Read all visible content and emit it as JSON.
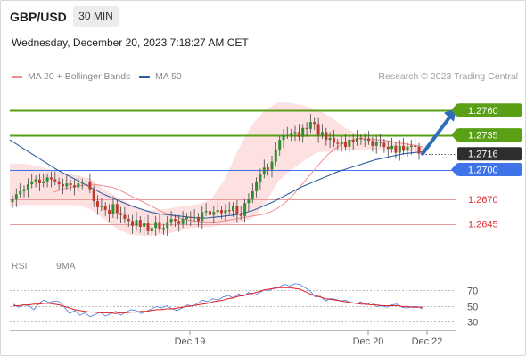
{
  "header": {
    "pair": "GBP/USD",
    "timeframe": "30 MIN",
    "timestamp": "Wednesday, December 20, 2023 7:18:27 AM CET"
  },
  "legend": {
    "ma20_label": "MA 20 + Bollinger Bands",
    "ma50_label": "MA 50",
    "credit": "Research © 2023 Trading Central"
  },
  "rsi_legend": {
    "rsi_label": "RSI",
    "ma_label": "9MA"
  },
  "colors": {
    "green_level": "#5aa016",
    "blue_level": "#3f73e8",
    "red_level": "#e89a9a",
    "ma20": "#f08c8c",
    "ma50": "#2f5fa0",
    "bollinger_fill": "#fde1e1",
    "candle_up": "#2f8f2f",
    "candle_down": "#c0392b",
    "arrow": "#2f6db8",
    "current_box": "#2e2e2e",
    "rsi": "#5b84e0",
    "rsi_ma": "#e02020"
  },
  "chart_data": [
    {
      "type": "line",
      "title": "GBP/USD 30 MIN",
      "ylim": [
        1.2615,
        1.2785
      ],
      "x_ticks": [
        "Dec 19",
        "Dec 20",
        "Dec 22"
      ],
      "levels": [
        {
          "value": 1.276,
          "label": "1.2760",
          "kind": "resistance"
        },
        {
          "value": 1.2735,
          "label": "1.2735",
          "kind": "resistance"
        },
        {
          "value": 1.2716,
          "label": "1.2716",
          "kind": "current"
        },
        {
          "value": 1.27,
          "label": "1.2700",
          "kind": "pivot"
        },
        {
          "value": 1.267,
          "label": "1.2670",
          "kind": "support"
        },
        {
          "value": 1.2645,
          "label": "1.2645",
          "kind": "support"
        }
      ],
      "close": [
        1.267,
        1.2675,
        1.2678,
        1.268,
        1.2685,
        1.2688,
        1.269,
        1.2686,
        1.2688,
        1.2692,
        1.269,
        1.2688,
        1.2685,
        1.2683,
        1.2686,
        1.2684,
        1.2682,
        1.2686,
        1.2687,
        1.2688,
        1.268,
        1.2668,
        1.2662,
        1.2663,
        1.2659,
        1.2655,
        1.2665,
        1.2656,
        1.2654,
        1.265,
        1.2648,
        1.2643,
        1.2649,
        1.2642,
        1.2646,
        1.2638,
        1.2641,
        1.2647,
        1.264,
        1.2641,
        1.2647,
        1.265,
        1.2648,
        1.2645,
        1.265,
        1.2652,
        1.2651,
        1.2652,
        1.2648,
        1.2657,
        1.2658,
        1.2654,
        1.2657,
        1.2659,
        1.2656,
        1.2659,
        1.2658,
        1.2663,
        1.2655,
        1.2653,
        1.2666,
        1.267,
        1.2678,
        1.2688,
        1.2695,
        1.2702,
        1.27,
        1.2708,
        1.272,
        1.273,
        1.2735,
        1.2735,
        1.2737,
        1.2738,
        1.2733,
        1.2742,
        1.2741,
        1.2748,
        1.2746,
        1.2735,
        1.2738,
        1.273,
        1.2732,
        1.2727,
        1.2726,
        1.2728,
        1.2723,
        1.273,
        1.2728,
        1.2732,
        1.2731,
        1.2731,
        1.2729,
        1.2724,
        1.2728,
        1.2727,
        1.2723,
        1.2721,
        1.2724,
        1.2717,
        1.2724,
        1.2719,
        1.2723,
        1.2724,
        1.2723,
        1.2716
      ],
      "ma20": [
        1.2677,
        1.2679,
        1.2681,
        1.2682,
        1.2683,
        1.2684,
        1.2685,
        1.2685,
        1.2684,
        1.2683,
        1.2682,
        1.268,
        1.2677,
        1.2674,
        1.2671,
        1.2668,
        1.2665,
        1.2662,
        1.2659,
        1.2656,
        1.2654,
        1.2652,
        1.265,
        1.2649,
        1.2648,
        1.2647,
        1.2647,
        1.2647,
        1.2647,
        1.2648,
        1.2649,
        1.265,
        1.2651,
        1.2652,
        1.2653,
        1.2654,
        1.2655,
        1.2657,
        1.266,
        1.2664,
        1.2669,
        1.2675,
        1.2682,
        1.2689,
        1.2696,
        1.2703,
        1.271,
        1.2716,
        1.2721,
        1.2725,
        1.2728,
        1.273,
        1.2731,
        1.2731,
        1.2731,
        1.273,
        1.273,
        1.2729,
        1.2728,
        1.2727,
        1.2726,
        1.2725,
        1.2724,
        1.2723
      ],
      "ma50": [
        1.273,
        1.2724,
        1.2718,
        1.2712,
        1.2706,
        1.27,
        1.2695,
        1.269,
        1.2685,
        1.268,
        1.2675,
        1.2671,
        1.2667,
        1.2663,
        1.266,
        1.2657,
        1.2655,
        1.2654,
        1.2653,
        1.2652,
        1.2651,
        1.2651,
        1.2652,
        1.2653,
        1.2654,
        1.2656,
        1.2659,
        1.2663,
        1.2667,
        1.2672,
        1.2677,
        1.2682,
        1.2686,
        1.269,
        1.2694,
        1.2698,
        1.2701,
        1.2704,
        1.2707,
        1.271,
        1.2712,
        1.2714,
        1.2716,
        1.2717,
        1.2718
      ],
      "bollinger_upper": [
        1.2706,
        1.2706,
        1.2704,
        1.27,
        1.2697,
        1.2694,
        1.2691,
        1.268,
        1.2672,
        1.2665,
        1.2659,
        1.2659,
        1.2661,
        1.2663,
        1.2665,
        1.267,
        1.269,
        1.272,
        1.2745,
        1.276,
        1.2768,
        1.2767,
        1.2764,
        1.276,
        1.2752,
        1.2742,
        1.2735,
        1.2732,
        1.273,
        1.2728,
        1.2726,
        1.2722
      ],
      "bollinger_lower": [
        1.2662,
        1.2664,
        1.2664,
        1.2664,
        1.2664,
        1.2664,
        1.266,
        1.265,
        1.264,
        1.2634,
        1.2633,
        1.2634,
        1.2636,
        1.264,
        1.2641,
        1.2642,
        1.2644,
        1.2646,
        1.265,
        1.2665,
        1.2688,
        1.27,
        1.271,
        1.2718,
        1.2718,
        1.272,
        1.272,
        1.272,
        1.2719,
        1.2719,
        1.2718,
        1.2716
      ],
      "forecast_target": 1.276
    },
    {
      "type": "line",
      "title": "RSI",
      "ylim": [
        20,
        80
      ],
      "y_ticks": [
        70,
        50,
        30
      ],
      "series": [
        {
          "name": "RSI",
          "values": [
            52,
            48,
            51,
            50,
            45,
            53,
            57,
            54,
            56,
            55,
            48,
            40,
            44,
            38,
            41,
            36,
            39,
            42,
            37,
            40,
            43,
            38,
            42,
            45,
            44,
            40,
            43,
            46,
            49,
            47,
            50,
            46,
            44,
            47,
            51,
            49,
            53,
            57,
            55,
            59,
            57,
            61,
            63,
            60,
            65,
            62,
            67,
            63,
            66,
            70,
            69,
            73,
            74,
            77,
            75,
            78,
            77,
            73,
            69,
            61,
            62,
            56,
            59,
            58,
            56,
            57,
            54,
            53,
            55,
            51,
            54,
            49,
            50,
            48,
            51,
            52,
            48,
            47,
            49,
            49,
            46
          ]
        },
        {
          "name": "9MA",
          "values": [
            50,
            50,
            51,
            51,
            52,
            52,
            53,
            53,
            52,
            51,
            49,
            47,
            45,
            44,
            43,
            42,
            42,
            41,
            41,
            41,
            40,
            41,
            41,
            42,
            42,
            43,
            43,
            44,
            45,
            45,
            46,
            46,
            47,
            48,
            49,
            50,
            51,
            52,
            53,
            55,
            56,
            57,
            59,
            60,
            62,
            63,
            65,
            66,
            68,
            70,
            71,
            72,
            73,
            73,
            73,
            72,
            71,
            68,
            65,
            63,
            61,
            59,
            58,
            57,
            56,
            55,
            54,
            53,
            52,
            52,
            51,
            51,
            50,
            50,
            50,
            50,
            49,
            49,
            48,
            48,
            48
          ]
        }
      ]
    }
  ]
}
